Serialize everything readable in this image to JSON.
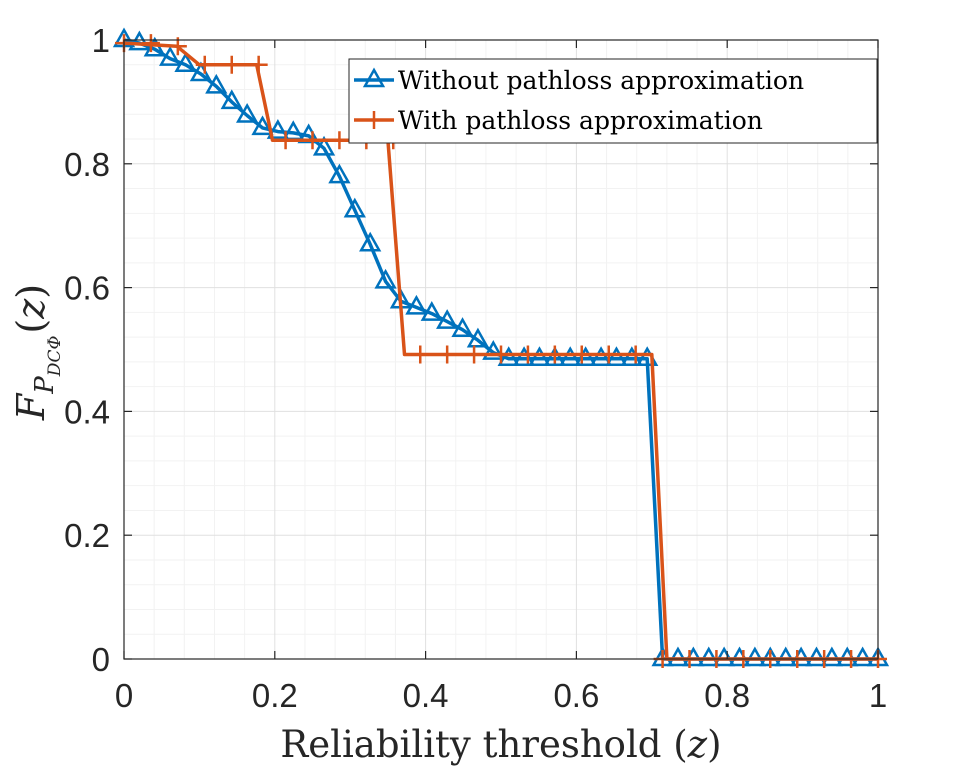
{
  "chart_data": {
    "type": "line",
    "title": "",
    "xlabel": "Reliability threshold (z)",
    "ylabel": {
      "base": "F",
      "sub": "P",
      "subsub": "DCΦ",
      "arg": "(z)"
    },
    "xlim": [
      0,
      1
    ],
    "ylim": [
      0,
      1
    ],
    "xticks": [
      0,
      0.2,
      0.4,
      0.6,
      0.8,
      1
    ],
    "yticks": [
      0,
      0.2,
      0.4,
      0.6,
      0.8,
      1
    ],
    "xtick_labels": [
      "0",
      "0.2",
      "0.4",
      "0.6",
      "0.8",
      "1"
    ],
    "ytick_labels": [
      "0",
      "0.2",
      "0.4",
      "0.6",
      "0.8",
      "1"
    ],
    "grid": true,
    "minor_grid": true,
    "legend_position": "top-right",
    "series": [
      {
        "name": "Without pathloss approximation",
        "color": "#0072BD",
        "marker": "triangle",
        "x": [
          0,
          0.0204,
          0.0408,
          0.0612,
          0.0816,
          0.102,
          0.1224,
          0.1429,
          0.1633,
          0.1837,
          0.2041,
          0.2245,
          0.2449,
          0.2653,
          0.2857,
          0.3061,
          0.3265,
          0.3469,
          0.3673,
          0.3878,
          0.4082,
          0.4286,
          0.449,
          0.4694,
          0.4898,
          0.5102,
          0.5306,
          0.551,
          0.5714,
          0.5918,
          0.6122,
          0.6327,
          0.6531,
          0.6735,
          0.6939,
          0.7143,
          0.7347,
          0.7551,
          0.7755,
          0.7959,
          0.8163,
          0.8367,
          0.8571,
          0.8776,
          0.898,
          0.9184,
          0.9388,
          0.9592,
          0.9796,
          1.0
        ],
        "y": [
          1.0,
          0.995,
          0.985,
          0.97,
          0.96,
          0.945,
          0.925,
          0.9,
          0.878,
          0.858,
          0.852,
          0.85,
          0.845,
          0.825,
          0.78,
          0.725,
          0.67,
          0.61,
          0.578,
          0.568,
          0.558,
          0.545,
          0.532,
          0.515,
          0.495,
          0.485,
          0.485,
          0.485,
          0.485,
          0.485,
          0.485,
          0.485,
          0.485,
          0.485,
          0.485,
          0.0,
          0.0,
          0.0,
          0.0,
          0.0,
          0.0,
          0.0,
          0.0,
          0.0,
          0.0,
          0.0,
          0.0,
          0.0,
          0.0,
          0.0
        ]
      },
      {
        "name": "With pathloss approximation",
        "color": "#D95319",
        "marker": "plus",
        "x": [
          0,
          0.0357,
          0.0714,
          0.1071,
          0.1429,
          0.1786,
          0.2143,
          0.25,
          0.2857,
          0.3214,
          0.3571,
          0.3929,
          0.4286,
          0.4643,
          0.5,
          0.5357,
          0.5714,
          0.6071,
          0.6429,
          0.6786,
          0.7143,
          0.75,
          0.7857,
          0.8214,
          0.8571,
          0.8929,
          0.9286,
          0.9643,
          1.0
        ],
        "y": [
          0.995,
          0.995,
          0.99,
          0.96,
          0.96,
          0.96,
          0.838,
          0.838,
          0.838,
          0.838,
          0.838,
          0.492,
          0.492,
          0.492,
          0.492,
          0.492,
          0.492,
          0.492,
          0.492,
          0.492,
          0.0,
          0.0,
          0.0,
          0.0,
          0.0,
          0.0,
          0.0,
          0.0,
          0.0
        ],
        "line_x": [
          0,
          0.07,
          0.1,
          0.176,
          0.197,
          0.35,
          0.372,
          0.7,
          0.72,
          1.0
        ],
        "line_y": [
          0.995,
          0.99,
          0.96,
          0.96,
          0.838,
          0.838,
          0.492,
          0.492,
          0.0,
          0.0
        ]
      }
    ]
  }
}
